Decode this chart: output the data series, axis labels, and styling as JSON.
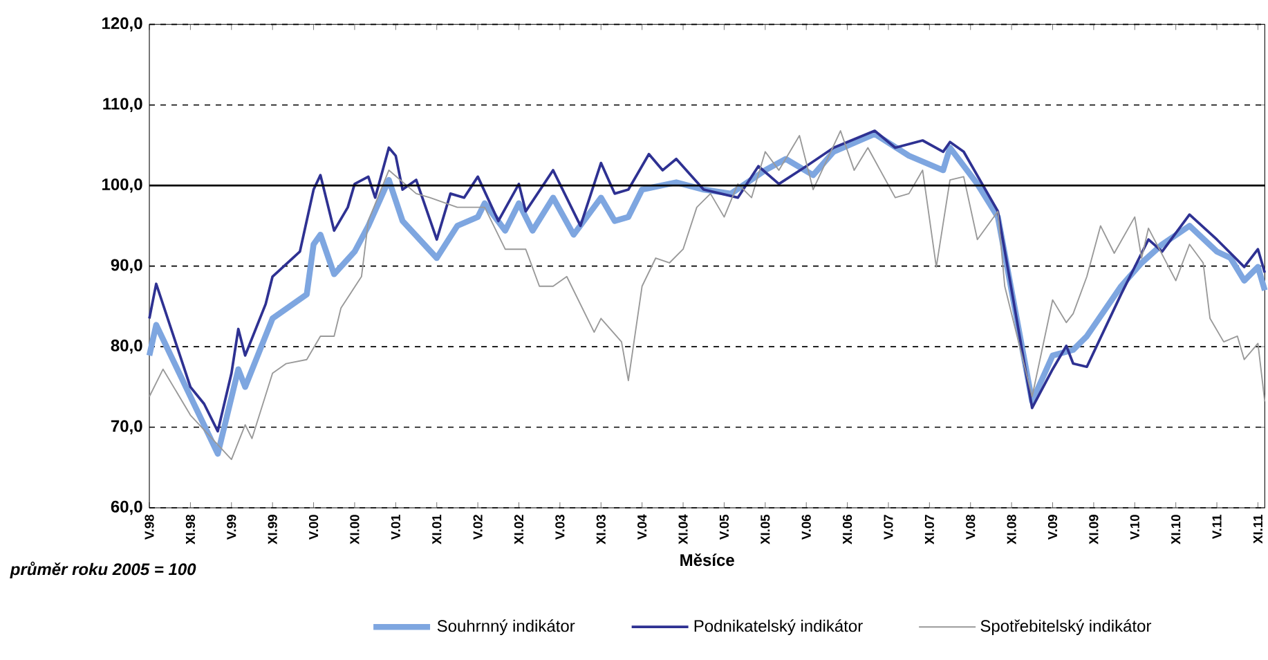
{
  "chart_data": {
    "type": "line",
    "xlabel": "Měsíce",
    "annotations": [
      "průměr roku 2005 = 100"
    ],
    "xlim": [
      "1998-05",
      "2011-12"
    ],
    "xticks": [
      {
        "value": "1998-05",
        "label": "V.98"
      },
      {
        "value": "1998-11",
        "label": "XI.98"
      },
      {
        "value": "1999-05",
        "label": "V.99"
      },
      {
        "value": "1999-11",
        "label": "XI.99"
      },
      {
        "value": "2000-05",
        "label": "V.00"
      },
      {
        "value": "2000-11",
        "label": "XI.00"
      },
      {
        "value": "2001-05",
        "label": "V.01"
      },
      {
        "value": "2001-11",
        "label": "XI.01"
      },
      {
        "value": "2002-05",
        "label": "V.02"
      },
      {
        "value": "2002-11",
        "label": "XI.02"
      },
      {
        "value": "2003-05",
        "label": "V.03"
      },
      {
        "value": "2003-11",
        "label": "XI.03"
      },
      {
        "value": "2004-05",
        "label": "V.04"
      },
      {
        "value": "2004-11",
        "label": "XI.04"
      },
      {
        "value": "2005-05",
        "label": "V.05"
      },
      {
        "value": "2005-11",
        "label": "XI.05"
      },
      {
        "value": "2006-05",
        "label": "V.06"
      },
      {
        "value": "2006-11",
        "label": "XI.06"
      },
      {
        "value": "2007-05",
        "label": "V.07"
      },
      {
        "value": "2007-11",
        "label": "XI.07"
      },
      {
        "value": "2008-05",
        "label": "V.08"
      },
      {
        "value": "2008-11",
        "label": "XI.08"
      },
      {
        "value": "2009-05",
        "label": "V.09"
      },
      {
        "value": "2009-11",
        "label": "XI.09"
      },
      {
        "value": "2010-05",
        "label": "V.10"
      },
      {
        "value": "2010-11",
        "label": "XI.10"
      },
      {
        "value": "2011-05",
        "label": "V.11"
      },
      {
        "value": "2011-11",
        "label": "XI.11"
      }
    ],
    "ylim": [
      60,
      120
    ],
    "yticks": [
      {
        "value": 60,
        "label": "60,0"
      },
      {
        "value": 70,
        "label": "70,0"
      },
      {
        "value": 80,
        "label": "80,0"
      },
      {
        "value": 90,
        "label": "90,0"
      },
      {
        "value": 100,
        "label": "100,0"
      },
      {
        "value": 110,
        "label": "110,0"
      },
      {
        "value": 120,
        "label": "120,0"
      }
    ],
    "grid": "y",
    "legend": "bottom",
    "ref_lines": [
      {
        "axis": "y",
        "value": 100,
        "color": "#000000"
      }
    ],
    "series": [
      {
        "name": "Souhrnný indikátor",
        "color": "#7ea6e0",
        "x": [
          "1998-05",
          "1998-06",
          "1999-03",
          "1999-06",
          "1999-07",
          "1999-11",
          "2000-04",
          "2000-05",
          "2000-06",
          "2000-08",
          "2000-11",
          "2001-01",
          "2001-04",
          "2001-06",
          "2001-11",
          "2002-02",
          "2002-05",
          "2002-06",
          "2002-09",
          "2002-11",
          "2003-01",
          "2003-04",
          "2003-07",
          "2003-11",
          "2004-01",
          "2004-03",
          "2004-05",
          "2004-10",
          "2005-02",
          "2005-06",
          "2005-11",
          "2006-02",
          "2006-06",
          "2006-09",
          "2007-03",
          "2007-08",
          "2008-01",
          "2008-02",
          "2008-06",
          "2008-09",
          "2009-02",
          "2009-05",
          "2009-08",
          "2009-10",
          "2010-03",
          "2010-06",
          "2010-09",
          "2011-01",
          "2011-05",
          "2011-07",
          "2011-09",
          "2011-11",
          "2011-12"
        ],
        "values": [
          78.9,
          82.7,
          66.7,
          77.2,
          75,
          83.5,
          86.5,
          92.7,
          93.9,
          89,
          91.8,
          95,
          100.7,
          95.6,
          91,
          95,
          96.1,
          97.8,
          94.4,
          97.8,
          94.4,
          98.5,
          93.9,
          98.5,
          95.6,
          96.1,
          99.5,
          100.4,
          99.5,
          99,
          101.9,
          103.3,
          101.3,
          104.2,
          106.4,
          103.7,
          101.9,
          104.7,
          100.2,
          96.1,
          73.2,
          78.9,
          79.6,
          81.3,
          87.5,
          90.4,
          92.7,
          95,
          91.8,
          91,
          88.2,
          89.9,
          87
        ]
      },
      {
        "name": "Podnikatelský indikátor",
        "color": "#2e3192",
        "x": [
          "1998-05",
          "1998-06",
          "1998-11",
          "1999-01",
          "1999-03",
          "1999-05",
          "1999-06",
          "1999-07",
          "1999-10",
          "1999-11",
          "2000-03",
          "2000-05",
          "2000-06",
          "2000-08",
          "2000-10",
          "2000-11",
          "2001-01",
          "2001-02",
          "2001-04",
          "2001-05",
          "2001-06",
          "2001-08",
          "2001-11",
          "2002-01",
          "2002-03",
          "2002-05",
          "2002-08",
          "2002-11",
          "2002-12",
          "2003-04",
          "2003-08",
          "2003-11",
          "2004-01",
          "2004-03",
          "2004-06",
          "2004-08",
          "2004-10",
          "2005-02",
          "2005-07",
          "2005-10",
          "2006-01",
          "2006-05",
          "2006-09",
          "2007-03",
          "2007-06",
          "2007-10",
          "2008-01",
          "2008-02",
          "2008-04",
          "2008-09",
          "2009-02",
          "2009-05",
          "2009-07",
          "2009-08",
          "2009-10",
          "2010-03",
          "2010-07",
          "2010-09",
          "2011-01",
          "2011-05",
          "2011-09",
          "2011-11",
          "2011-12"
        ],
        "values": [
          83.5,
          87.8,
          75,
          72.9,
          69.5,
          76.7,
          82.2,
          78.9,
          85.3,
          88.7,
          91.8,
          99.5,
          101.3,
          94.4,
          97.3,
          100.2,
          101.1,
          98.5,
          104.7,
          103.7,
          99.5,
          100.7,
          93.3,
          99,
          98.5,
          101.1,
          95.6,
          100.2,
          96.8,
          101.9,
          95,
          102.8,
          99,
          99.5,
          103.9,
          101.9,
          103.3,
          99.5,
          98.5,
          102.4,
          100.2,
          102.4,
          104.7,
          106.8,
          104.7,
          105.6,
          104.2,
          105.4,
          104.2,
          96.8,
          72.4,
          77.2,
          80.1,
          77.9,
          77.5,
          86.5,
          93.3,
          91.8,
          96.4,
          93.3,
          89.9,
          92.1,
          89.2
        ]
      },
      {
        "name": "Spotřebitelský indikátor",
        "color": "#999999",
        "x": [
          "1998-05",
          "1998-07",
          "1998-11",
          "1999-05",
          "1999-07",
          "1999-08",
          "1999-11",
          "2000-01",
          "2000-04",
          "2000-06",
          "2000-08",
          "2000-09",
          "2000-12",
          "2001-01",
          "2001-04",
          "2001-08",
          "2001-10",
          "2002-02",
          "2002-06",
          "2002-09",
          "2002-12",
          "2003-02",
          "2003-04",
          "2003-06",
          "2003-10",
          "2003-11",
          "2004-02",
          "2004-03",
          "2004-05",
          "2004-07",
          "2004-09",
          "2004-11",
          "2005-01",
          "2005-03",
          "2005-05",
          "2005-07",
          "2005-09",
          "2005-11",
          "2006-01",
          "2006-04",
          "2006-06",
          "2006-10",
          "2006-12",
          "2007-02",
          "2007-06",
          "2007-08",
          "2007-10",
          "2007-12",
          "2008-02",
          "2008-04",
          "2008-06",
          "2008-09",
          "2008-10",
          "2009-02",
          "2009-05",
          "2009-07",
          "2009-08",
          "2009-10",
          "2009-12",
          "2010-02",
          "2010-05",
          "2010-06",
          "2010-07",
          "2010-11",
          "2011-01",
          "2011-03",
          "2011-04",
          "2011-06",
          "2011-08",
          "2011-09",
          "2011-11",
          "2011-12"
        ],
        "values": [
          73.8,
          77.2,
          71.5,
          66,
          70.3,
          68.6,
          76.7,
          77.9,
          78.4,
          81.3,
          81.3,
          84.8,
          88.7,
          95.6,
          101.9,
          99,
          98.5,
          97.3,
          97.3,
          92.1,
          92.1,
          87.5,
          87.5,
          88.7,
          81.8,
          83.5,
          80.6,
          75.8,
          87.5,
          91,
          90.4,
          92.1,
          97.3,
          99,
          96.1,
          100.2,
          98.5,
          104.2,
          101.9,
          106.2,
          99.5,
          106.8,
          101.9,
          104.7,
          98.5,
          99,
          101.9,
          89.9,
          100.7,
          101.1,
          93.3,
          96.8,
          87.5,
          73.8,
          85.8,
          83,
          84.1,
          88.7,
          95,
          91.6,
          96.1,
          91,
          94.7,
          88.2,
          92.7,
          90.4,
          83.5,
          80.6,
          81.3,
          78.4,
          80.4,
          73.2
        ]
      }
    ]
  }
}
